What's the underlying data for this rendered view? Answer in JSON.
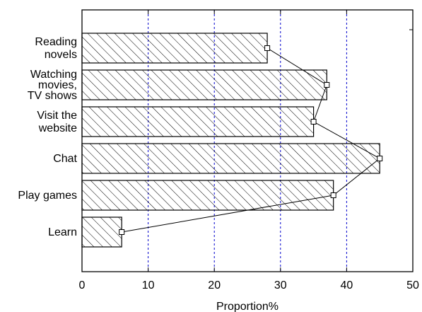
{
  "chart_data": {
    "type": "bar",
    "orientation": "horizontal",
    "title": "",
    "xlabel": "Proportion%",
    "ylabel": "",
    "xlim": [
      0,
      50
    ],
    "xticks": [
      0,
      10,
      20,
      30,
      40,
      50
    ],
    "grid": "vertical dashed at x = 10, 20, 30, 40",
    "bar_fill": "diagonal hatch",
    "categories": [
      [
        "Reading",
        "novels"
      ],
      [
        "Watching",
        "movies,",
        "TV shows"
      ],
      [
        "Visit the",
        "website"
      ],
      [
        "Chat"
      ],
      [
        "Play games"
      ],
      [
        "Learn"
      ]
    ],
    "values": [
      28,
      37,
      35,
      45,
      38,
      6
    ],
    "overlay": "line with square markers connecting bar-end values",
    "colors": {
      "bar_stroke": "#000000",
      "hatch": "#000000",
      "grid": "#0000cc",
      "line": "#000000",
      "marker_fill": "#ffffff"
    }
  }
}
